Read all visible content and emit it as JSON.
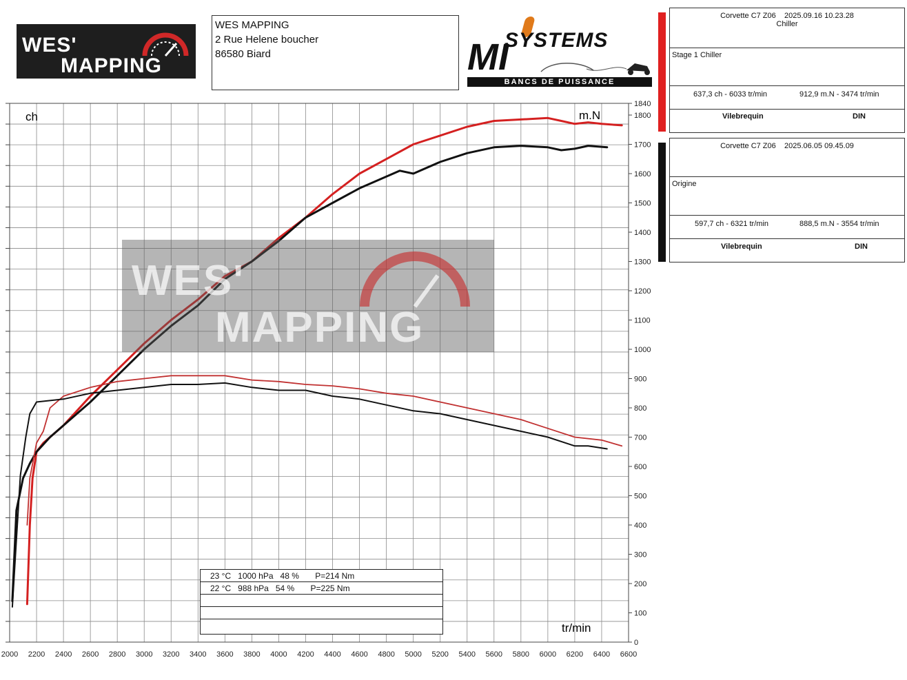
{
  "header": {
    "logo_left": {
      "line1": "WES'",
      "line2": "MAPPING"
    },
    "address": [
      "WES MAPPING",
      "2 Rue Helene boucher",
      "86580 Biard"
    ],
    "logo_right": {
      "big": "MI",
      "systems": "SYSTEMS",
      "tagline": "BANCS DE PUISSANCE"
    }
  },
  "runs": [
    {
      "color": "#e02020",
      "vehicle": "Corvette C7 Z06",
      "datetime": "2025.09.16 10.23.28",
      "sub": "Chiller",
      "label": "Stage 1 Chiller",
      "power": "637,3 ch - 6033 tr/min",
      "torque": "912,9 m.N - 3474 tr/min",
      "mode": "Vilebrequin",
      "norm": "DIN"
    },
    {
      "color": "#111111",
      "vehicle": "Corvette C7 Z06",
      "datetime": "2025.06.05 09.45.09",
      "sub": "",
      "label": "Origine",
      "power": "597,7 ch - 6321 tr/min",
      "torque": "888,5 m.N - 3554 tr/min",
      "mode": "Vilebrequin",
      "norm": "DIN"
    }
  ],
  "conditions": [
    "23 °C   1000 hPa   48 %       P=214 Nm",
    "22 °C   988 hPa   54 %       P=225 Nm",
    "",
    "",
    ""
  ],
  "watermark": {
    "line1": "WES'",
    "line2": "MAPPING"
  },
  "chart_data": {
    "type": "line",
    "xlabel": "tr/min",
    "ylabel_left": "ch",
    "ylabel_right": "m.N",
    "xlim": [
      2000,
      6600
    ],
    "x_ticks": [
      2000,
      2200,
      2400,
      2600,
      2800,
      3000,
      3200,
      3400,
      3600,
      3800,
      4000,
      4200,
      4400,
      4600,
      4800,
      5000,
      5200,
      5400,
      5600,
      5800,
      6000,
      6200,
      6400,
      6600
    ],
    "y_right_lim": [
      0,
      1840
    ],
    "y_right_ticks": [
      0,
      100,
      200,
      300,
      400,
      500,
      600,
      700,
      800,
      900,
      1000,
      1100,
      1200,
      1300,
      1400,
      1500,
      1600,
      1700,
      1800,
      1840
    ],
    "grid": true,
    "series": [
      {
        "name": "Stage 1 Chiller",
        "kind": "power",
        "color": "#d42020",
        "width": 3,
        "x": [
          2130,
          2150,
          2170,
          2200,
          2250,
          2300,
          2400,
          2500,
          2600,
          2800,
          3000,
          3200,
          3400,
          3600,
          3800,
          4000,
          4200,
          4400,
          4600,
          4800,
          5000,
          5200,
          5400,
          5600,
          5800,
          6000,
          6100,
          6200,
          6300,
          6400,
          6550
        ],
        "y": [
          130,
          400,
          560,
          650,
          680,
          700,
          740,
          790,
          840,
          930,
          1020,
          1100,
          1170,
          1250,
          1300,
          1380,
          1450,
          1530,
          1600,
          1650,
          1700,
          1730,
          1760,
          1780,
          1785,
          1790,
          1780,
          1770,
          1775,
          1770,
          1765
        ]
      },
      {
        "name": "Origine",
        "kind": "power",
        "color": "#111111",
        "width": 3,
        "x": [
          2020,
          2050,
          2100,
          2150,
          2200,
          2300,
          2400,
          2500,
          2600,
          2800,
          3000,
          3200,
          3400,
          3600,
          3800,
          4000,
          4200,
          4400,
          4600,
          4800,
          4900,
          5000,
          5200,
          5400,
          5600,
          5800,
          6000,
          6100,
          6200,
          6300,
          6440
        ],
        "y": [
          140,
          450,
          560,
          610,
          650,
          700,
          740,
          780,
          820,
          910,
          1000,
          1080,
          1150,
          1240,
          1300,
          1370,
          1450,
          1500,
          1550,
          1590,
          1610,
          1600,
          1640,
          1670,
          1690,
          1695,
          1690,
          1680,
          1685,
          1695,
          1690
        ]
      },
      {
        "name": "Stage 1 Chiller",
        "kind": "torque",
        "color": "#c03030",
        "width": 1.8,
        "x": [
          2130,
          2150,
          2200,
          2250,
          2300,
          2400,
          2600,
          2800,
          3000,
          3200,
          3400,
          3600,
          3800,
          4000,
          4200,
          4400,
          4600,
          4800,
          5000,
          5200,
          5400,
          5600,
          5800,
          6000,
          6200,
          6400,
          6550
        ],
        "y": [
          400,
          560,
          680,
          720,
          800,
          840,
          870,
          890,
          900,
          910,
          910,
          910,
          895,
          890,
          880,
          875,
          865,
          850,
          840,
          820,
          800,
          780,
          760,
          730,
          700,
          690,
          670
        ]
      },
      {
        "name": "Origine",
        "kind": "torque",
        "color": "#111111",
        "width": 2,
        "x": [
          2020,
          2050,
          2080,
          2120,
          2150,
          2200,
          2400,
          2600,
          2800,
          3000,
          3200,
          3400,
          3600,
          3800,
          4000,
          4200,
          4400,
          4600,
          4800,
          5000,
          5200,
          5400,
          5600,
          5800,
          6000,
          6200,
          6300,
          6440
        ],
        "y": [
          120,
          350,
          570,
          700,
          780,
          820,
          830,
          850,
          860,
          870,
          880,
          880,
          885,
          870,
          860,
          860,
          840,
          830,
          810,
          790,
          780,
          760,
          740,
          720,
          700,
          670,
          670,
          660
        ]
      }
    ]
  }
}
